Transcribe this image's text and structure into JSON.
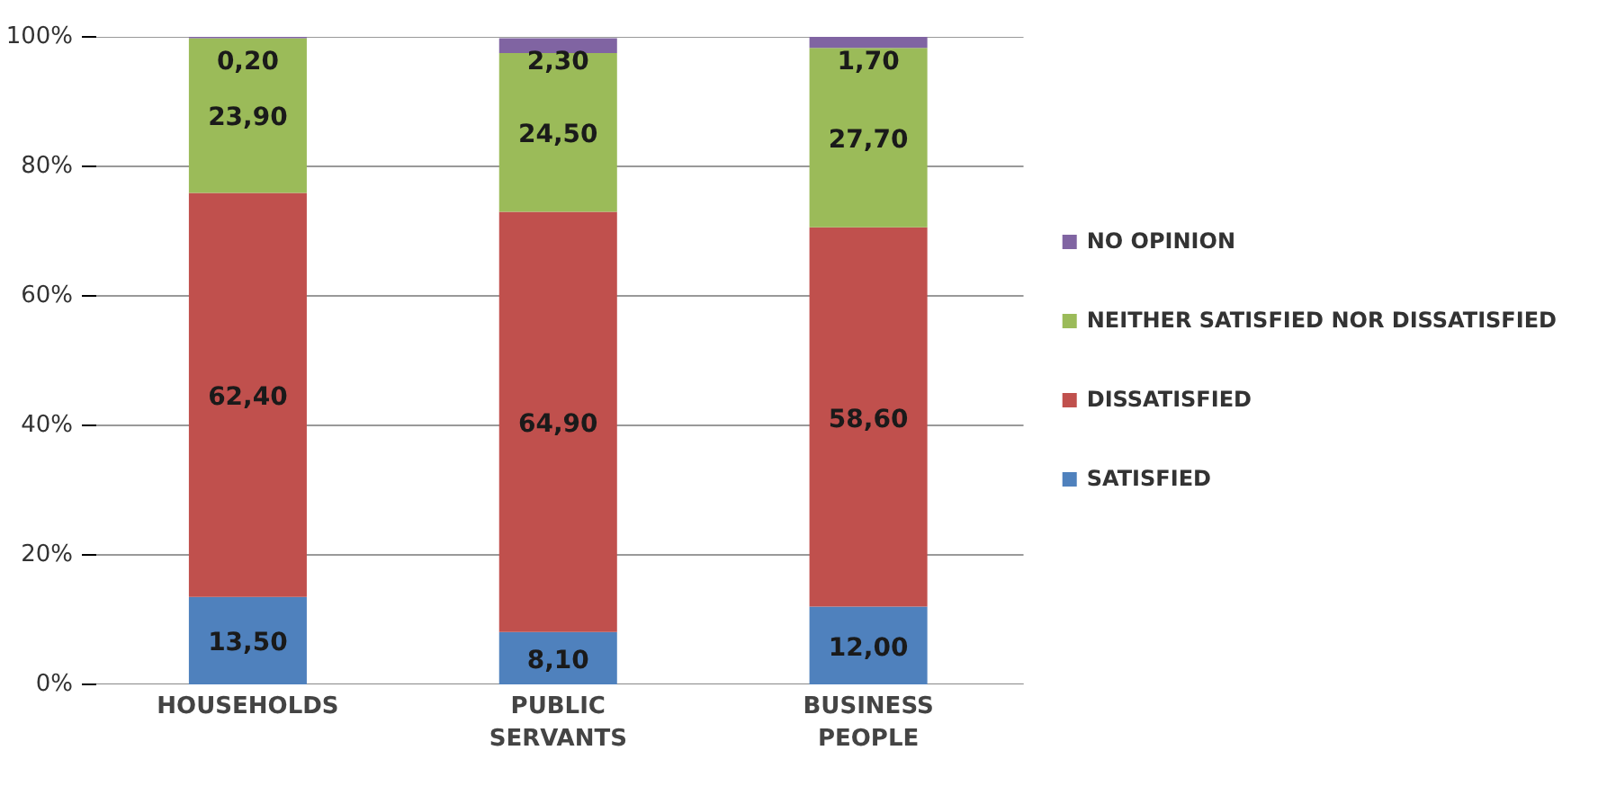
{
  "chart_data": {
    "type": "bar",
    "stacked": true,
    "categories": [
      "HOUSEHOLDS",
      "PUBLIC SERVANTS",
      "BUSINESS PEOPLE"
    ],
    "series": [
      {
        "name": "SATISFIED",
        "color": "#4f81bd",
        "values": [
          13.5,
          8.1,
          12.0
        ],
        "value_labels": [
          "13,50",
          "8,10",
          "12,00"
        ]
      },
      {
        "name": "DISSATISFIED",
        "color": "#c0504d",
        "values": [
          62.4,
          64.9,
          58.6
        ],
        "value_labels": [
          "62,40",
          "64,90",
          "58,60"
        ]
      },
      {
        "name": "NEITHER SATISFIED NOR DISSATISFIED",
        "color": "#9bbb59",
        "values": [
          23.9,
          24.5,
          27.7
        ],
        "value_labels": [
          "23,90",
          "24,50",
          "27,70"
        ]
      },
      {
        "name": "NO OPINION",
        "color": "#8064a2",
        "values": [
          0.2,
          2.3,
          1.7
        ],
        "value_labels": [
          "0,20",
          "2,30",
          "1,70"
        ]
      }
    ],
    "ylim": [
      0,
      100
    ],
    "yticks": [
      {
        "value": 0,
        "label": "0%"
      },
      {
        "value": 20,
        "label": "20%"
      },
      {
        "value": 40,
        "label": "40%"
      },
      {
        "value": 60,
        "label": "60%"
      },
      {
        "value": 80,
        "label": "80%"
      },
      {
        "value": 100,
        "label": "100%"
      }
    ],
    "grid": "y",
    "legend": "right"
  }
}
